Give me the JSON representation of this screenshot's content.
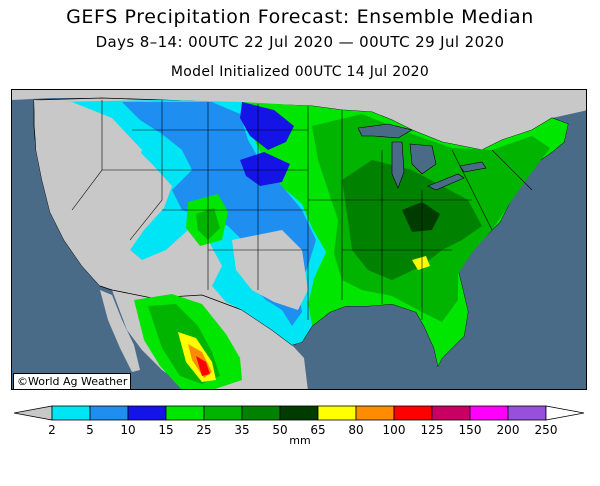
{
  "header": {
    "title": "GEFS Precipitation Forecast: Ensemble Median",
    "subtitle": "Days 8–14: 00UTC 22 Jul 2020 — 00UTC 29 Jul 2020",
    "init": "Model Initialized 00UTC 14 Jul 2020"
  },
  "map": {
    "region": "contiguous United States",
    "credit": "©World Ag Weather",
    "colors": {
      "ocean": "#4a6b88",
      "no_data_land": "#c8c8c8",
      "borders": "#000000"
    }
  },
  "legend": {
    "unit": "mm",
    "ticks": [
      "2",
      "5",
      "10",
      "15",
      "25",
      "35",
      "50",
      "65",
      "80",
      "100",
      "125",
      "150",
      "200",
      "250"
    ],
    "colors": [
      "#00e5f5",
      "#1e8ff0",
      "#1414e6",
      "#00e600",
      "#00b400",
      "#008200",
      "#003c00",
      "#ffff00",
      "#ff8c00",
      "#ff0000",
      "#c80064",
      "#ff00ff",
      "#9650dc"
    ],
    "under_color": "#c8c8c8",
    "over_color": "#ffffff"
  }
}
